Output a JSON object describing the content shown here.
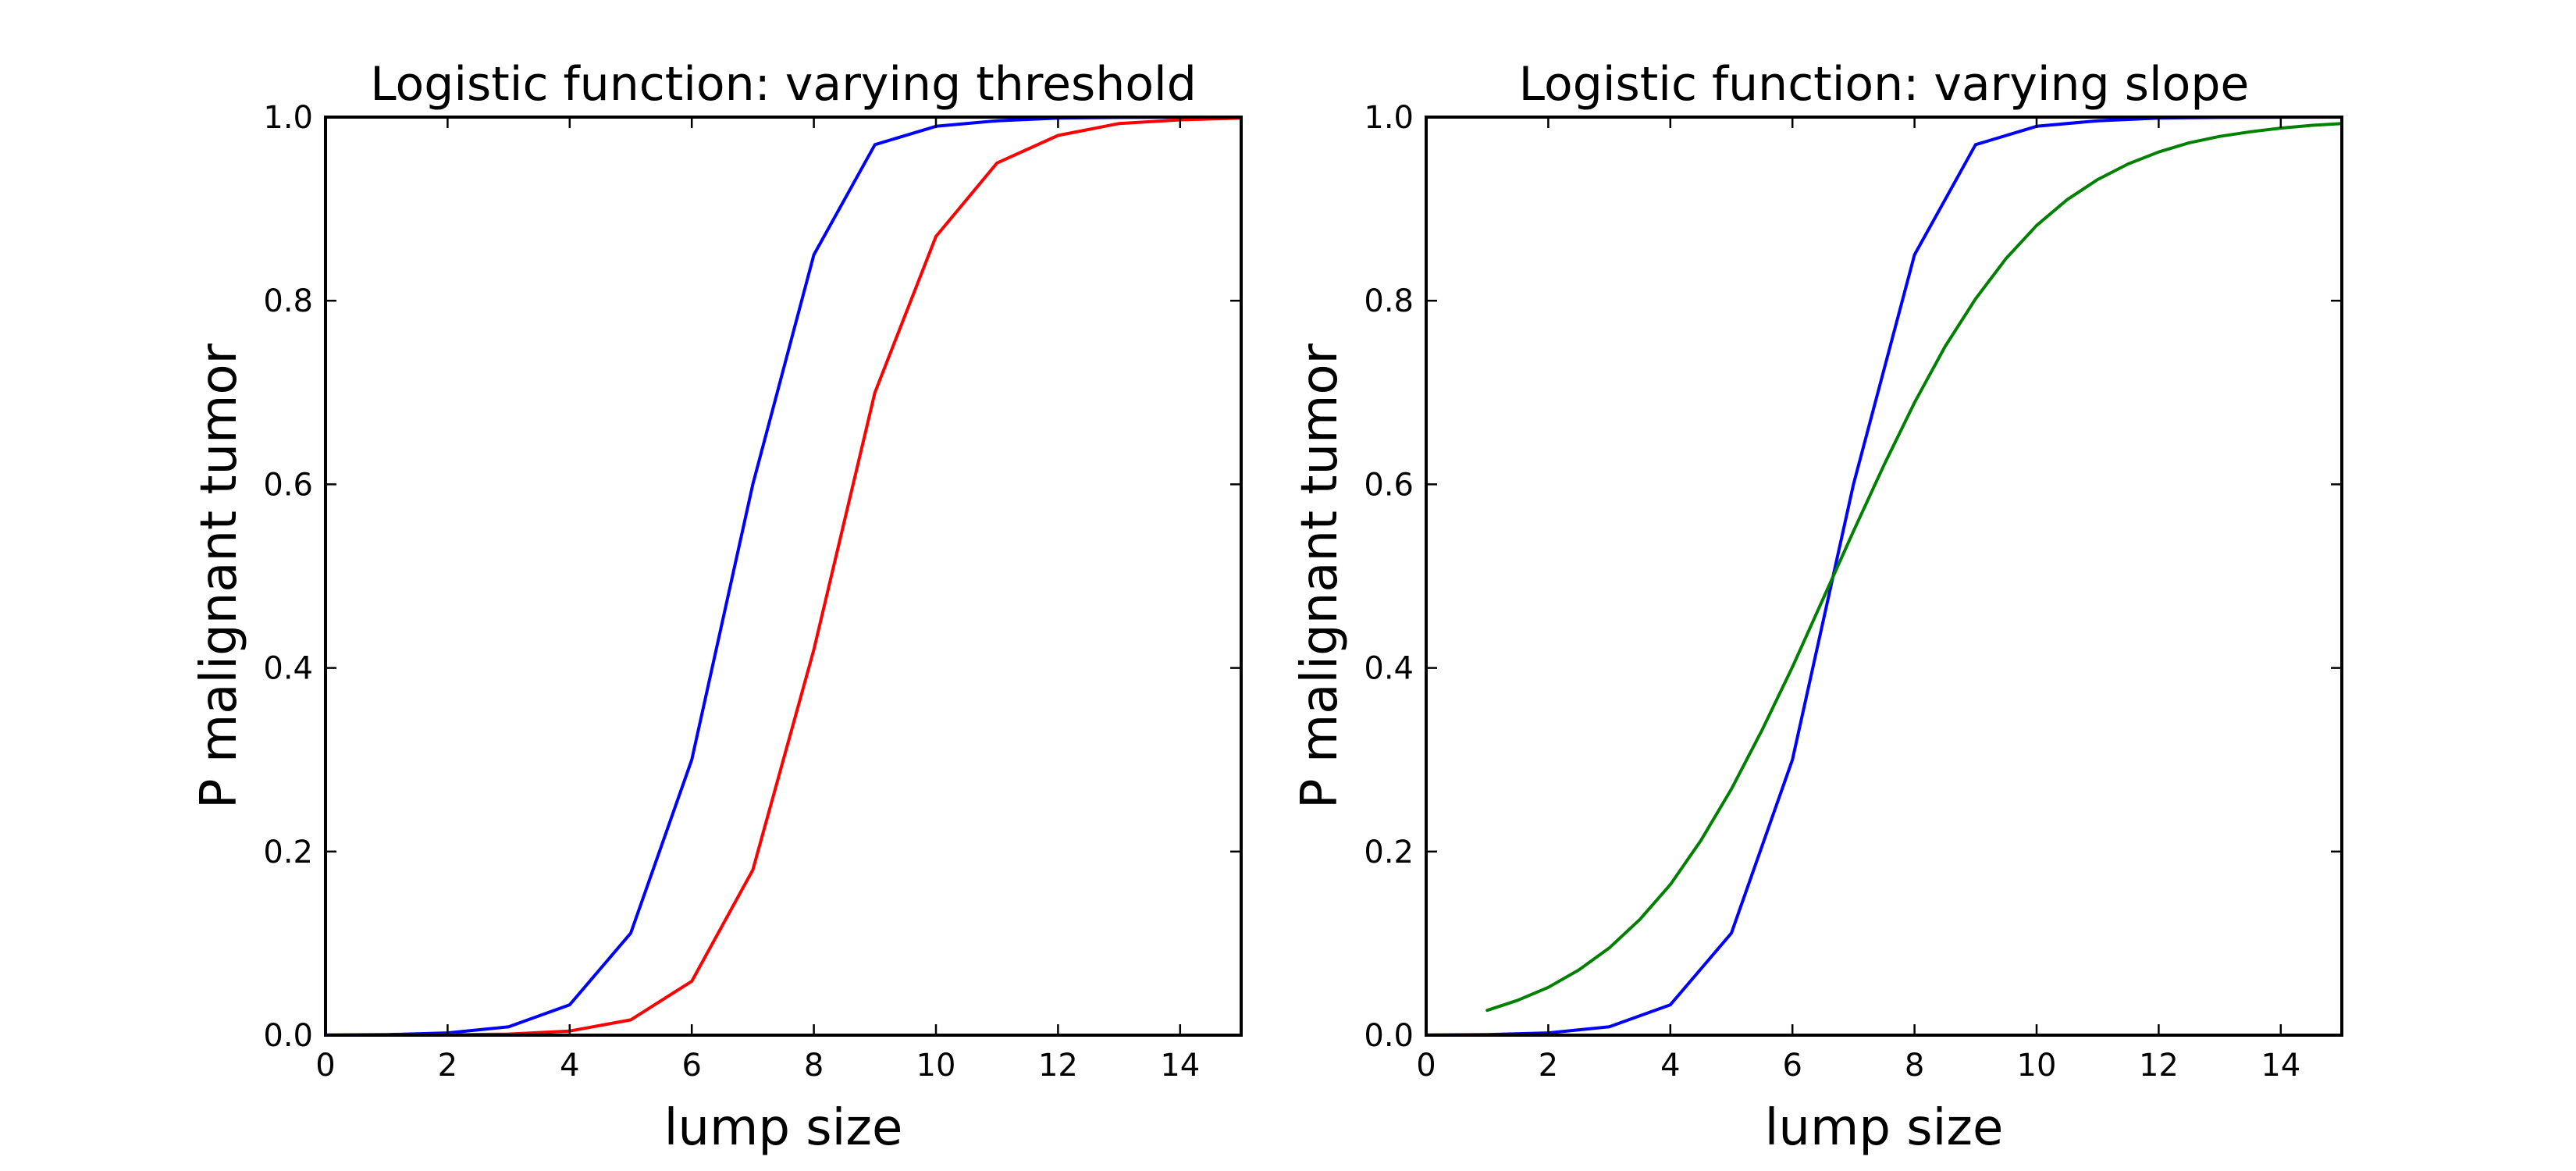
{
  "chart_data": [
    {
      "type": "line",
      "title": "Logistic function: varying threshold",
      "xlabel": "lump size",
      "ylabel": "P malignant tumor",
      "xlim": [
        0,
        15
      ],
      "ylim": [
        0.0,
        1.0
      ],
      "x_ticks": [
        "0",
        "2",
        "4",
        "6",
        "8",
        "10",
        "12",
        "14"
      ],
      "y_ticks": [
        "0.0",
        "0.2",
        "0.4",
        "0.6",
        "0.8",
        "1.0"
      ],
      "grid": false,
      "legend": "none",
      "x": [
        0,
        1,
        2,
        3,
        4,
        5,
        6,
        7,
        8,
        9,
        10,
        11,
        12,
        13,
        14,
        15
      ],
      "series": [
        {
          "color": "#0000ff",
          "values": [
            0.0002,
            0.0006,
            0.0025,
            0.0091,
            0.0331,
            0.1111,
            0.3,
            0.6,
            0.85,
            0.97,
            0.99,
            0.996,
            0.999,
            0.9997,
            0.9999,
            1.0
          ]
        },
        {
          "color": "#ff0000",
          "values": [
            0.0,
            0.0001,
            0.0003,
            0.0012,
            0.0045,
            0.0167,
            0.0588,
            0.18,
            0.42,
            0.7,
            0.87,
            0.95,
            0.98,
            0.993,
            0.997,
            0.999
          ]
        }
      ]
    },
    {
      "type": "line",
      "title": "Logistic function: varying slope",
      "xlabel": "lump size",
      "ylabel": "P malignant tumor",
      "xlim": [
        0,
        15
      ],
      "ylim": [
        0.0,
        1.0
      ],
      "x_ticks": [
        "0",
        "2",
        "4",
        "6",
        "8",
        "10",
        "12",
        "14"
      ],
      "y_ticks": [
        "0.0",
        "0.2",
        "0.4",
        "0.6",
        "0.8",
        "1.0"
      ],
      "grid": false,
      "legend": "none",
      "x": [
        0,
        1,
        2,
        3,
        4,
        5,
        6,
        7,
        8,
        9,
        10,
        11,
        12,
        13,
        14,
        15
      ],
      "series": [
        {
          "color": "#0000ff",
          "values": [
            0.0002,
            0.0006,
            0.0025,
            0.0091,
            0.0331,
            0.1111,
            0.3,
            0.6,
            0.85,
            0.97,
            0.99,
            0.996,
            0.999,
            0.9997,
            0.9999,
            1.0
          ]
        },
        {
          "color": "#008000",
          "x": [
            1,
            1.5,
            2,
            2.5,
            3,
            3.5,
            4,
            4.5,
            5,
            5.5,
            6,
            6.5,
            7,
            7.5,
            8,
            8.5,
            9,
            9.5,
            10,
            10.5,
            11,
            11.5,
            12,
            12.5,
            13,
            13.5,
            14,
            14.5,
            15
          ],
          "values": [
            0.027,
            0.038,
            0.052,
            0.071,
            0.095,
            0.126,
            0.164,
            0.212,
            0.268,
            0.332,
            0.401,
            0.475,
            0.549,
            0.621,
            0.689,
            0.75,
            0.802,
            0.846,
            0.882,
            0.91,
            0.932,
            0.949,
            0.962,
            0.972,
            0.979,
            0.984,
            0.988,
            0.991,
            0.993
          ]
        }
      ]
    }
  ]
}
